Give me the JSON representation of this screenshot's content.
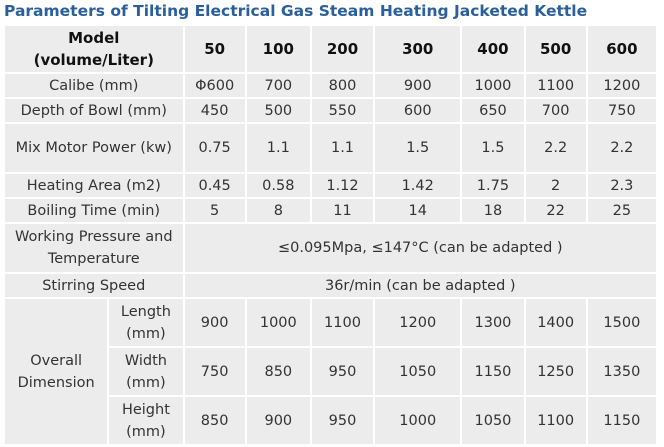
{
  "title": "Parameters of Tilting Electrical Gas Steam Heating Jacketed Kettle",
  "table": {
    "header": [
      "Model (volume/Liter)",
      "50",
      "100",
      "200",
      "300",
      "400",
      "500",
      "600"
    ],
    "rows": [
      [
        "Calibe (mm)",
        "Φ600",
        "700",
        "800",
        "900",
        "1000",
        "1100",
        "1200"
      ],
      [
        "Depth of Bowl (mm)",
        "450",
        "500",
        "550",
        "600",
        "650",
        "700",
        "750"
      ],
      [
        "Mix Motor Power (kw)",
        "0.75",
        "1.1",
        "1.1",
        "1.5",
        "1.5",
        "2.2",
        "2.2"
      ],
      [
        "Heating Area (m2)",
        "0.45",
        "0.58",
        "1.12",
        "1.42",
        "1.75",
        "2",
        "2.3"
      ],
      [
        "Boiling Time (min)",
        "5",
        "8",
        "11",
        "14",
        "18",
        "22",
        "25"
      ],
      [
        "Working Pressure and Temperature",
        "≤0.095Mpa, ≤147°C (can be adapted )"
      ],
      [
        "Stirring Speed",
        "36r/min (can be adapted )"
      ]
    ],
    "overall_dimension": {
      "label": "Overall Dimension",
      "rows": [
        [
          "Length (mm)",
          "900",
          "1000",
          "1100",
          "1200",
          "1300",
          "1400",
          "1500"
        ],
        [
          "Width (mm)",
          "750",
          "850",
          "950",
          "1050",
          "1150",
          "1250",
          "1350"
        ],
        [
          "Height (mm)",
          "850",
          "900",
          "950",
          "1000",
          "1050",
          "1100",
          "1150"
        ]
      ]
    }
  }
}
